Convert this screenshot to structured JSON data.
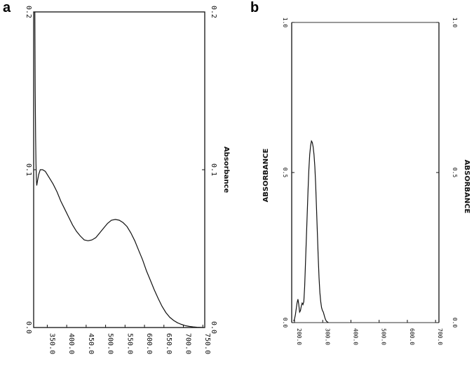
{
  "chart_data": [
    {
      "panel": "a",
      "type": "line",
      "ylabel": "Absorbance",
      "x_ticks": [
        "350.0",
        "400.0",
        "450.0",
        "500.0",
        "550.0",
        "600.0",
        "650.0",
        "700.0",
        "750.0"
      ],
      "y_ticks_left": [
        "0.0",
        "0.1",
        "0.2"
      ],
      "y_ticks_right": [
        "0.0",
        "0.1",
        "0.2"
      ],
      "xlim": [
        315,
        755
      ],
      "ylim": [
        0,
        0.2
      ],
      "grid": false,
      "series": [
        {
          "x": [
            318,
            318.5,
            319,
            320,
            321,
            322,
            323,
            325,
            328,
            332,
            338,
            345,
            355,
            365,
            375,
            385,
            395,
            405,
            415,
            425,
            435,
            445,
            455,
            465,
            475,
            485,
            495,
            505,
            515,
            525,
            535,
            545,
            555,
            565,
            575,
            585,
            595,
            605,
            615,
            625,
            635,
            645,
            655,
            665,
            675,
            685,
            695,
            705,
            715,
            725,
            735,
            745,
            752
          ],
          "y": [
            0.2,
            0.18,
            0.15,
            0.12,
            0.104,
            0.094,
            0.09,
            0.093,
            0.097,
            0.1,
            0.1,
            0.099,
            0.095,
            0.091,
            0.086,
            0.08,
            0.075,
            0.07,
            0.065,
            0.061,
            0.058,
            0.0555,
            0.055,
            0.0555,
            0.057,
            0.06,
            0.063,
            0.066,
            0.068,
            0.0685,
            0.068,
            0.0665,
            0.064,
            0.06,
            0.055,
            0.049,
            0.043,
            0.036,
            0.03,
            0.024,
            0.0185,
            0.0135,
            0.0095,
            0.0065,
            0.0045,
            0.003,
            0.002,
            0.0012,
            0.0007,
            0.0004,
            0.0002,
            0.0001,
            0
          ]
        }
      ]
    },
    {
      "panel": "b",
      "type": "line",
      "ylabel": "ABSORBANCE",
      "x_ticks": [
        "200.0",
        "300.0",
        "400.0",
        "500.0",
        "600.0",
        "700.0"
      ],
      "y_ticks_left": [
        "0.0",
        "0.5",
        "1.0"
      ],
      "y_ticks_right": [
        "0.0",
        "0.5",
        "1.0"
      ],
      "xlim": [
        190,
        712
      ],
      "ylim": [
        0,
        1.0
      ],
      "grid": false,
      "series": [
        {
          "x": [
            197,
            200,
            203,
            206,
            209,
            212,
            215,
            218,
            221,
            224,
            227,
            230,
            233,
            236,
            239,
            242,
            245,
            248,
            251,
            254,
            257,
            260,
            263,
            266,
            269,
            272,
            275,
            278,
            281,
            284,
            287,
            290,
            293,
            296,
            299,
            302,
            305,
            308,
            311,
            314,
            317,
            320
          ],
          "y": [
            0.005,
            0.012,
            0.025,
            0.045,
            0.065,
            0.078,
            0.06,
            0.035,
            0.04,
            0.055,
            0.065,
            0.06,
            0.07,
            0.12,
            0.2,
            0.28,
            0.36,
            0.44,
            0.51,
            0.56,
            0.59,
            0.605,
            0.6,
            0.585,
            0.56,
            0.52,
            0.46,
            0.38,
            0.3,
            0.22,
            0.15,
            0.1,
            0.07,
            0.05,
            0.04,
            0.035,
            0.025,
            0.015,
            0.008,
            0.004,
            0.002,
            0
          ]
        }
      ]
    }
  ],
  "panels": {
    "a": {
      "letter": "a",
      "ylabel": "Absorbance"
    },
    "b": {
      "letter": "b",
      "ylabel_left": "ABSORBANCE",
      "ylabel_right": "ABSORBANCE"
    }
  }
}
